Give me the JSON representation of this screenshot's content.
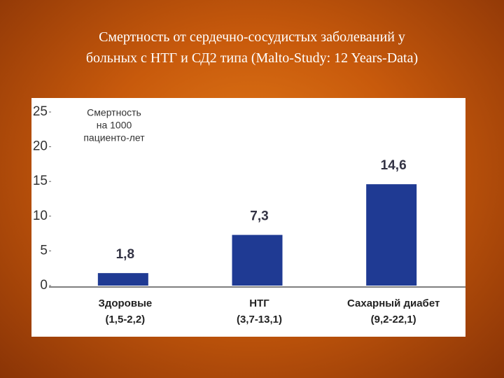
{
  "title_lines": [
    "Смертность от сердечно-сосудистых заболеваний у",
    "больных с НТГ и СД2 типа (Malto-Study: 12 Years-Data)"
  ],
  "chart_data": {
    "type": "bar",
    "y_label_lines": [
      "Смертность",
      "на 1000",
      "пациенто-лет"
    ],
    "categories": [
      "Здоровые",
      "НТГ",
      "Сахарный диабет"
    ],
    "category_ranges": [
      "(1,5-2,2)",
      "(3,7-13,1)",
      "(9,2-22,1)"
    ],
    "values": [
      1.8,
      7.3,
      14.6
    ],
    "value_labels": [
      "1,8",
      "7,3",
      "14,6"
    ],
    "color": "#1f3a93",
    "ylim": [
      0,
      25
    ],
    "yticks": [
      0,
      5,
      10,
      15,
      20,
      25
    ]
  }
}
